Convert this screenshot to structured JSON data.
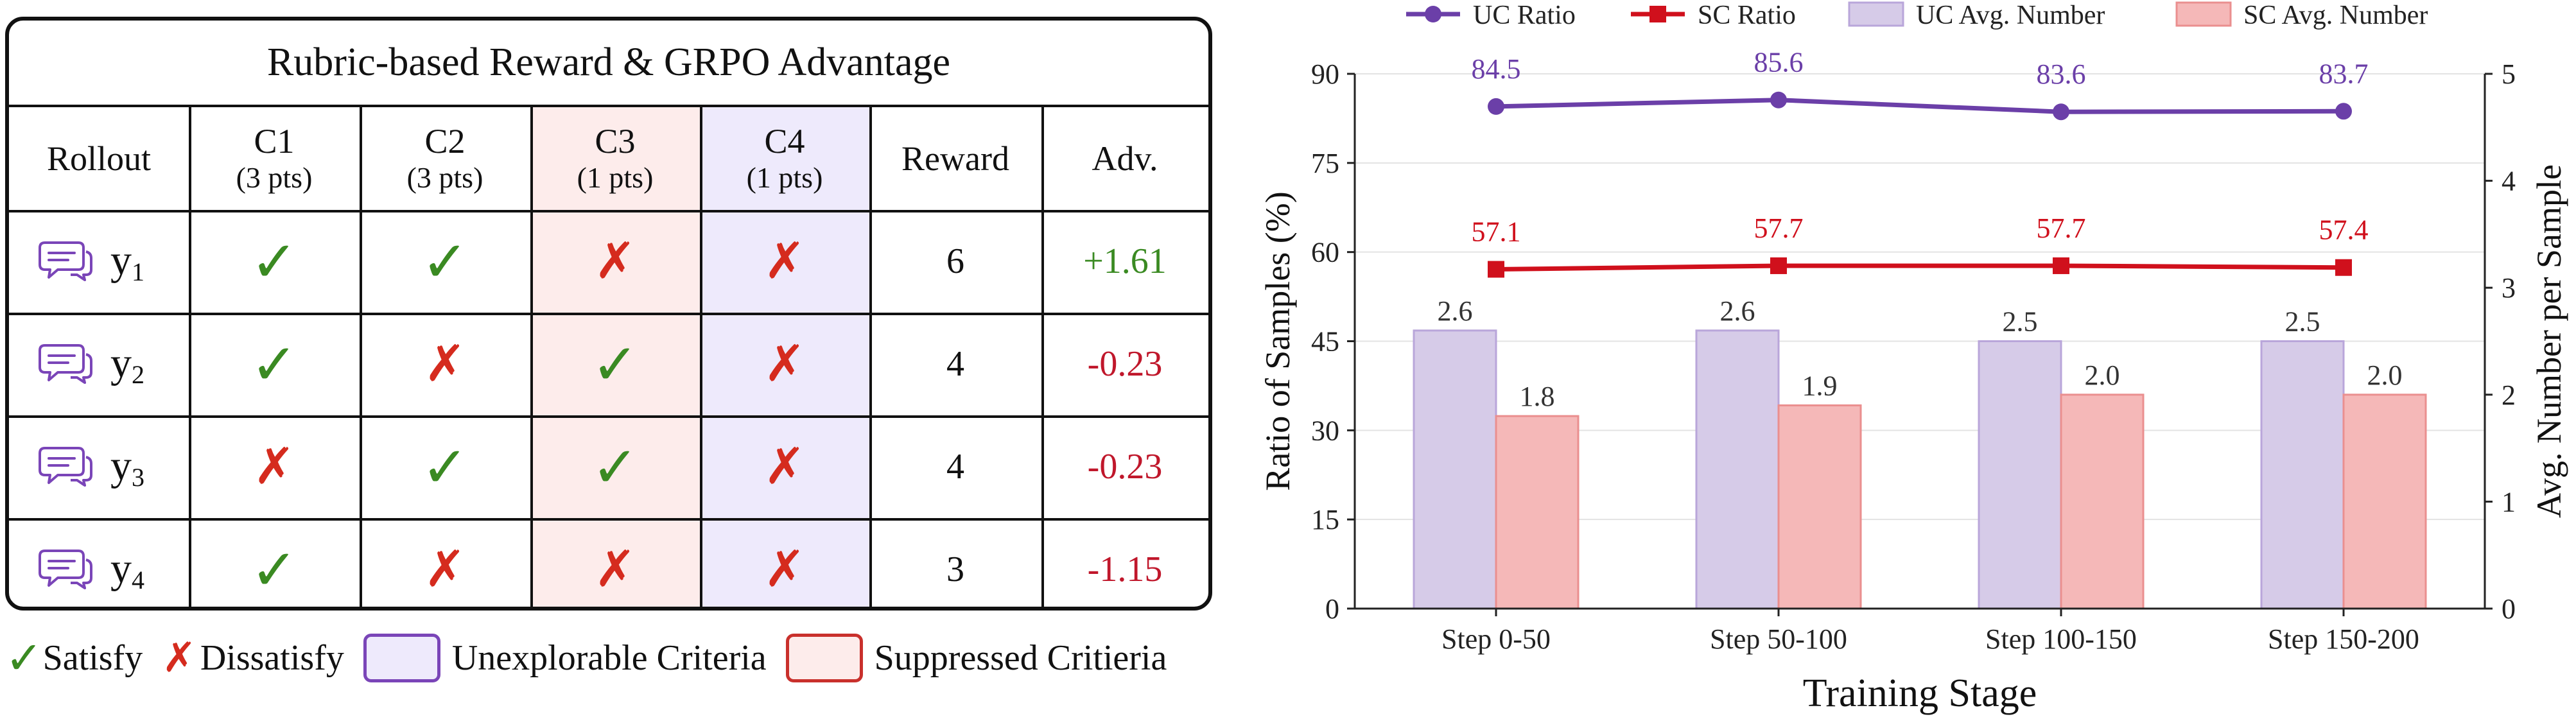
{
  "rubric_table": {
    "title": "Rubric-based Reward & GRPO Advantage",
    "headers": [
      {
        "main": "Rollout",
        "sub": ""
      },
      {
        "main": "C1",
        "sub": "(3 pts)"
      },
      {
        "main": "C2",
        "sub": "(3 pts)"
      },
      {
        "main": "C3",
        "sub": "(1 pts)"
      },
      {
        "main": "C4",
        "sub": "(1 pts)"
      },
      {
        "main": "Reward",
        "sub": ""
      },
      {
        "main": "Adv.",
        "sub": ""
      }
    ],
    "rows": [
      {
        "rollout": "y",
        "index": "1",
        "c1": "✓",
        "c2": "✓",
        "c3": "✗",
        "c4": "✗",
        "reward": "6",
        "adv": "+1.61"
      },
      {
        "rollout": "y",
        "index": "2",
        "c1": "✓",
        "c2": "✗",
        "c3": "✓",
        "c4": "✗",
        "reward": "4",
        "adv": "-0.23"
      },
      {
        "rollout": "y",
        "index": "3",
        "c1": "✗",
        "c2": "✓",
        "c3": "✓",
        "c4": "✗",
        "reward": "4",
        "adv": "-0.23"
      },
      {
        "rollout": "y",
        "index": "4",
        "c1": "✓",
        "c2": "✗",
        "c3": "✗",
        "c4": "✗",
        "reward": "3",
        "adv": "-1.15"
      }
    ],
    "legend": {
      "satisfy": "Satisfy",
      "dissatisfy": "Dissatisfy",
      "unexplorable": "Unexplorable Criteria",
      "suppressed": "Suppressed Critieria"
    },
    "colors": {
      "check": "#3a8a22",
      "cross": "#d52b1e",
      "c3_bg": "#fdeceb",
      "c4_bg": "#eeeafc",
      "unexplorable_border": "#7a45b8",
      "suppressed_border": "#c9302c",
      "adv_pos": "#3a8a22",
      "adv_neg": "#c0172b",
      "icon": "#7a45b8"
    },
    "icons": {
      "rollout": "chat-bubble-icon"
    }
  },
  "chart_data": {
    "type": "bar",
    "categories": [
      "Step 0-50",
      "Step 50-100",
      "Step 100-150",
      "Step 150-200"
    ],
    "xlabel": "Training Stage",
    "ylabel_left": "Ratio of Samples (%)",
    "ylabel_right": "Avg. Number per Sample",
    "ylim_left": [
      0,
      90
    ],
    "yticks_left": [
      "0",
      "15",
      "30",
      "45",
      "60",
      "75",
      "90"
    ],
    "ylim_right": [
      0,
      5
    ],
    "yticks_right": [
      "0",
      "1",
      "2",
      "3",
      "4",
      "5"
    ],
    "grid": true,
    "legend_position": "top",
    "series": [
      {
        "name": "UC Ratio",
        "kind": "line",
        "axis": "left",
        "marker": "circle",
        "color": "#6b3fa8",
        "values": [
          84.5,
          85.6,
          83.6,
          83.7
        ],
        "labels": [
          "84.5",
          "85.6",
          "83.6",
          "83.7"
        ]
      },
      {
        "name": "SC Ratio",
        "kind": "line",
        "axis": "left",
        "marker": "square",
        "color": "#d0101c",
        "values": [
          57.1,
          57.7,
          57.7,
          57.4
        ],
        "labels": [
          "57.1",
          "57.7",
          "57.7",
          "57.4"
        ]
      },
      {
        "name": "UC Avg. Number",
        "kind": "bar",
        "axis": "right",
        "color": "#d6cbe8",
        "edge": "#b9a6da",
        "values": [
          2.6,
          2.6,
          2.5,
          2.5
        ],
        "labels": [
          "2.6",
          "2.6",
          "2.5",
          "2.5"
        ]
      },
      {
        "name": "SC Avg. Number",
        "kind": "bar",
        "axis": "right",
        "color": "#f5b8b8",
        "edge": "#ea8f8f",
        "values": [
          1.8,
          1.9,
          2.0,
          2.0
        ],
        "labels": [
          "1.8",
          "1.9",
          "2.0",
          "2.0"
        ]
      }
    ]
  }
}
